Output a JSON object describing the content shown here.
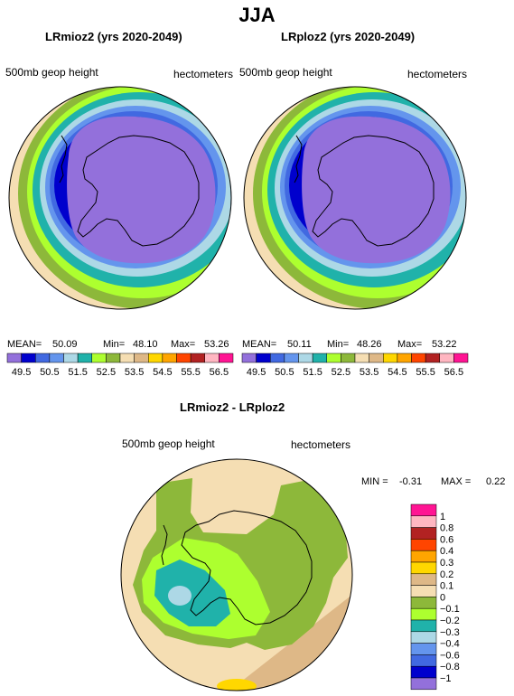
{
  "season": "JJA",
  "panels": [
    {
      "title": "LRmioz2 (yrs 2020-2049)",
      "left_label": "500mb geop height",
      "right_label": "hectometers",
      "stats": {
        "mean_label": "MEAN=",
        "mean": "50.09",
        "min_label": "Min=",
        "min": "48.10",
        "max_label": "Max=",
        "max": "53.26"
      }
    },
    {
      "title": "LRploz2 (yrs 2020-2049)",
      "left_label": "500mb geop height",
      "right_label": "hectometers",
      "stats": {
        "mean_label": "MEAN=",
        "mean": "50.11",
        "min_label": "Min=",
        "min": "48.26",
        "max_label": "Max=",
        "max": "53.22"
      }
    }
  ],
  "colorbar": {
    "labels": [
      "49.5",
      "50.5",
      "51.5",
      "52.5",
      "53.5",
      "54.5",
      "55.5",
      "56.5"
    ],
    "colors": [
      "#9370db",
      "#0000cd",
      "#4169e1",
      "#6495ed",
      "#add8e6",
      "#20b2aa",
      "#adff2f",
      "#8db83a",
      "#f5deb3",
      "#deb887",
      "#ffd700",
      "#ffa500",
      "#ff4500",
      "#b22222",
      "#ffb6c1",
      "#ff1493"
    ]
  },
  "diff_panel": {
    "title": "LRmioz2 - LRploz2",
    "left_label": "500mb geop height",
    "right_label": "hectometers",
    "stats": {
      "min_label": "MIN =",
      "min": "-0.31",
      "max_label": "MAX =",
      "max": "0.22"
    },
    "legend": {
      "labels": [
        "1",
        "0.8",
        "0.6",
        "0.4",
        "0.3",
        "0.2",
        "0.1",
        "0",
        "−0.1",
        "−0.2",
        "−0.3",
        "−0.4",
        "−0.6",
        "−0.8",
        "−1"
      ],
      "colors": [
        "#ff1493",
        "#ffb6c1",
        "#b22222",
        "#ff4500",
        "#ffa500",
        "#ffd700",
        "#deb887",
        "#f5deb3",
        "#8db83a",
        "#adff2f",
        "#20b2aa",
        "#add8e6",
        "#6495ed",
        "#4169e1",
        "#0000cd",
        "#9370db"
      ]
    }
  },
  "map_colors": {
    "outer": "#f5deb3",
    "green": "#8db83a",
    "light_green": "#adff2f",
    "teal": "#20b2aa",
    "light_blue": "#add8e6",
    "cornflower": "#6495ed",
    "royal": "#4169e1",
    "navy": "#0000cd",
    "purple": "#9370db",
    "tan": "#deb887",
    "gold": "#ffd700"
  }
}
